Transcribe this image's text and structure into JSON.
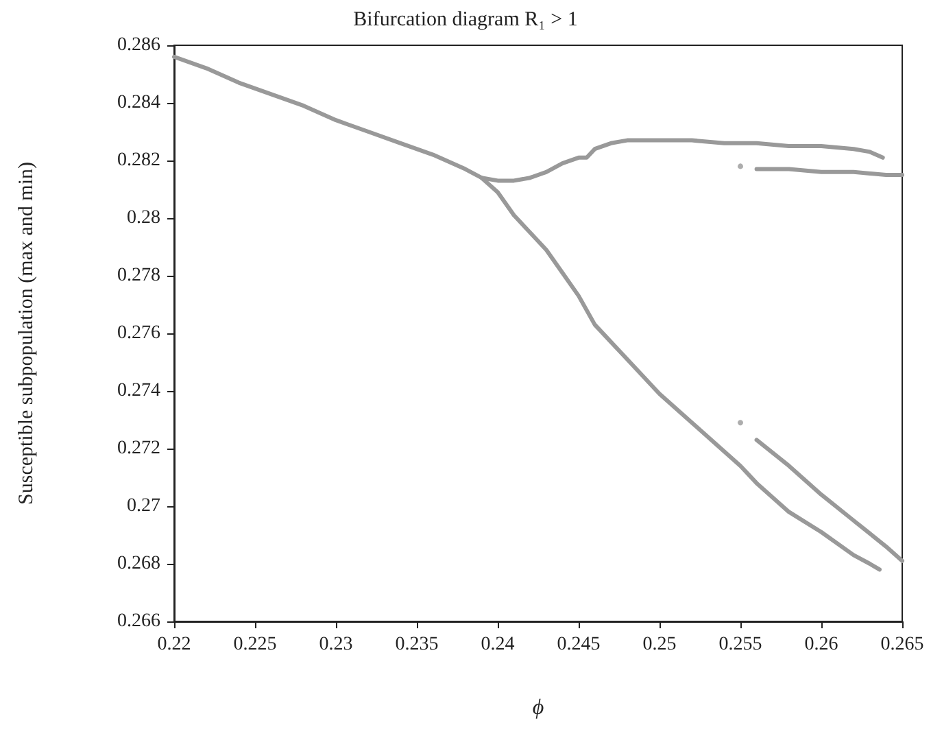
{
  "chart_data": {
    "type": "line",
    "title": "Bifurcation diagram R₁ > 1",
    "xlabel": "ϕ",
    "ylabel": "Susceptible subpopulation (max and min)",
    "xlim": [
      0.22,
      0.265
    ],
    "xticks": [
      0.22,
      0.225,
      0.23,
      0.235,
      0.24,
      0.245,
      0.25,
      0.255,
      0.26,
      0.265
    ],
    "ylim": [
      0.266,
      0.286
    ],
    "yticks": [
      0.266,
      0.268,
      0.27,
      0.272,
      0.274,
      0.276,
      0.278,
      0.28,
      0.282,
      0.284,
      0.286
    ],
    "grid": false,
    "marker": "none",
    "line_style": "solid",
    "series": [
      {
        "color": "#999999",
        "x": [
          0.22,
          0.222,
          0.224,
          0.226,
          0.228,
          0.23,
          0.232,
          0.234,
          0.236,
          0.238,
          0.239,
          0.24,
          0.241,
          0.242,
          0.243,
          0.244,
          0.245,
          0.2455,
          0.246,
          0.247,
          0.248,
          0.25,
          0.252,
          0.254,
          0.256,
          0.258,
          0.26,
          0.262,
          0.263,
          0.2638
        ],
        "values": [
          0.2856,
          0.2852,
          0.2847,
          0.2843,
          0.2839,
          0.2834,
          0.283,
          0.2826,
          0.2822,
          0.2817,
          0.2814,
          0.2813,
          0.2813,
          0.2814,
          0.2816,
          0.2819,
          0.2821,
          0.2821,
          0.2824,
          0.2826,
          0.2827,
          0.2827,
          0.2827,
          0.2826,
          0.2826,
          0.2825,
          0.2825,
          0.2824,
          0.2823,
          0.2821
        ]
      },
      {
        "color": "#999999",
        "x": [
          0.239,
          0.24,
          0.241,
          0.242,
          0.243,
          0.244,
          0.245,
          0.246,
          0.247,
          0.248,
          0.25,
          0.252,
          0.254,
          0.255,
          0.256,
          0.258,
          0.26,
          0.262,
          0.263,
          0.2636
        ],
        "values": [
          0.2814,
          0.2809,
          0.2801,
          0.2795,
          0.2789,
          0.2781,
          0.2773,
          0.2763,
          0.2757,
          0.2751,
          0.2739,
          0.2729,
          0.2719,
          0.2714,
          0.2708,
          0.2698,
          0.2691,
          0.2683,
          0.268,
          0.2678
        ]
      },
      {
        "color": "#999999",
        "x": [
          0.256,
          0.258,
          0.26,
          0.262,
          0.264,
          0.265
        ],
        "values": [
          0.2817,
          0.2817,
          0.2816,
          0.2816,
          0.2815,
          0.2815
        ]
      },
      {
        "color": "#999999",
        "x": [
          0.256,
          0.258,
          0.26,
          0.262,
          0.264,
          0.265
        ],
        "values": [
          0.2723,
          0.2714,
          0.2704,
          0.2695,
          0.2686,
          0.2681
        ]
      },
      {
        "type": "scatter",
        "marker": "circle",
        "color": "#999999",
        "x": [
          0.255,
          0.255
        ],
        "values": [
          0.2818,
          0.2729
        ]
      }
    ]
  }
}
